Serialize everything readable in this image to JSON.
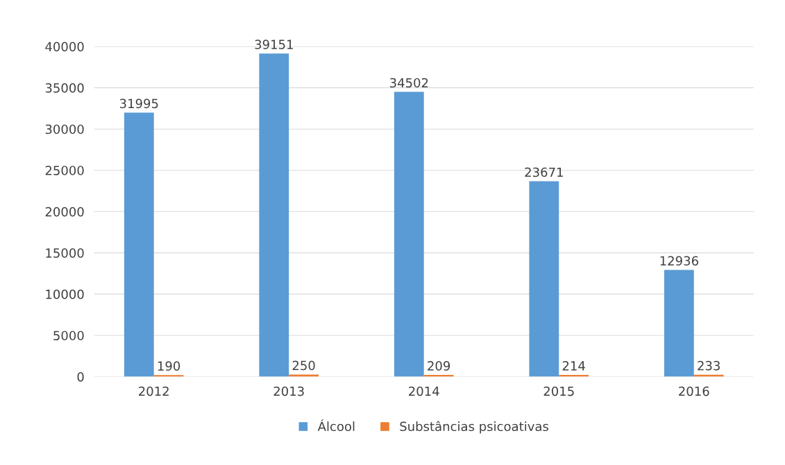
{
  "chart_data": {
    "type": "bar",
    "categories": [
      "2012",
      "2013",
      "2014",
      "2015",
      "2016"
    ],
    "series": [
      {
        "name": "Álcool",
        "color": "#5b9bd5",
        "values": [
          31995,
          39151,
          34502,
          23671,
          12936
        ]
      },
      {
        "name": "Substâncias psicoativas",
        "color": "#ed7d31",
        "values": [
          190,
          250,
          209,
          214,
          233
        ]
      }
    ],
    "ylim": [
      0,
      40000
    ],
    "yticks": [
      0,
      5000,
      10000,
      15000,
      20000,
      25000,
      30000,
      35000,
      40000
    ],
    "grid": "y",
    "legend": "bottom",
    "data_labels": true
  }
}
